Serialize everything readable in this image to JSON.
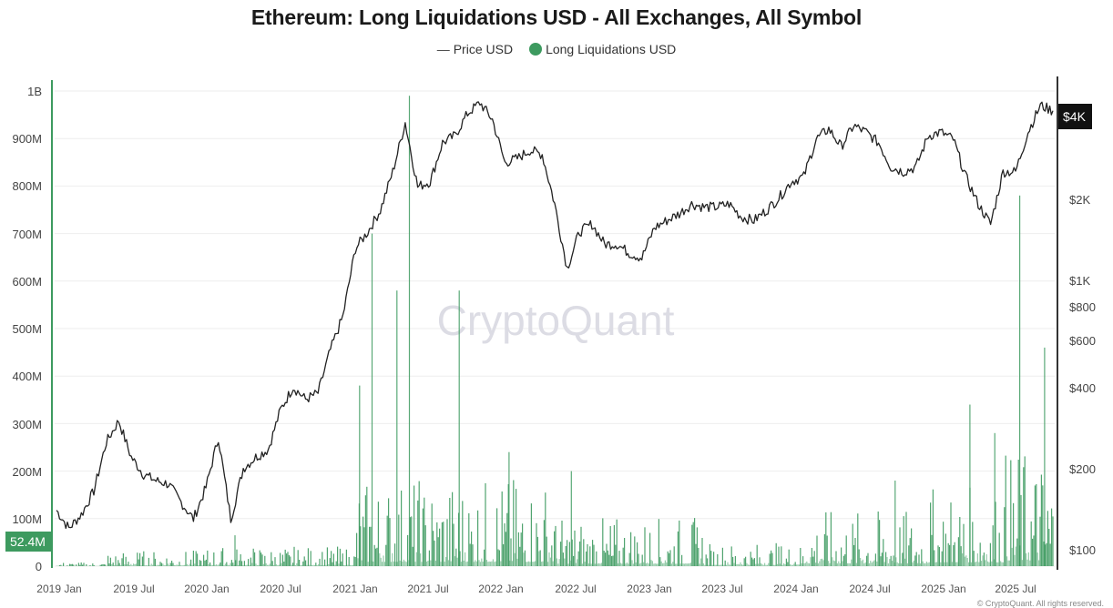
{
  "chart_data": {
    "type": "bar+line",
    "title": "Ethereum: Long Liquidations USD - All Exchanges, All Symbol",
    "legend": [
      {
        "name": "Price USD",
        "marker": "line",
        "color": "#222222"
      },
      {
        "name": "Long Liquidations USD",
        "marker": "dot",
        "color": "#3d9a5f"
      }
    ],
    "legend_position": "top-center",
    "grid": true,
    "left_axis": {
      "label": "Long Liquidations USD",
      "ticks": [
        "0",
        "100M",
        "200M",
        "300M",
        "400M",
        "500M",
        "600M",
        "700M",
        "800M",
        "900M",
        "1B"
      ],
      "range": [
        0,
        1000000000
      ],
      "current_value_badge": "52.4M"
    },
    "right_axis": {
      "label": "Price USD",
      "scale": "log",
      "ticks": [
        "$100",
        "$200",
        "$400",
        "$600",
        "$800",
        "$1K",
        "$2K",
        "$4K"
      ],
      "current_value_badge": "$4K"
    },
    "x_axis": {
      "ticks": [
        "2019 Jan",
        "2019 Jul",
        "2020 Jan",
        "2020 Jul",
        "2021 Jan",
        "2021 Jul",
        "2022 Jan",
        "2022 Jul",
        "2023 Jan",
        "2023 Jul",
        "2024 Jan",
        "2024 Jul",
        "2025 Jan",
        "2025 Jul"
      ]
    },
    "series": [
      {
        "name": "Price USD",
        "type": "line",
        "x": [
          "2019-01",
          "2019-02",
          "2019-03",
          "2019-04",
          "2019-05",
          "2019-06",
          "2019-07",
          "2019-08",
          "2019-09",
          "2019-10",
          "2019-11",
          "2019-12",
          "2020-01",
          "2020-02",
          "2020-03",
          "2020-04",
          "2020-05",
          "2020-06",
          "2020-07",
          "2020-08",
          "2020-09",
          "2020-10",
          "2020-11",
          "2020-12",
          "2021-01",
          "2021-02",
          "2021-03",
          "2021-04",
          "2021-05",
          "2021-06",
          "2021-07",
          "2021-08",
          "2021-09",
          "2021-10",
          "2021-11",
          "2021-12",
          "2022-01",
          "2022-02",
          "2022-03",
          "2022-04",
          "2022-05",
          "2022-06",
          "2022-07",
          "2022-08",
          "2022-09",
          "2022-10",
          "2022-11",
          "2022-12",
          "2023-01",
          "2023-02",
          "2023-03",
          "2023-04",
          "2023-05",
          "2023-06",
          "2023-07",
          "2023-08",
          "2023-09",
          "2023-10",
          "2023-11",
          "2023-12",
          "2024-01",
          "2024-02",
          "2024-03",
          "2024-04",
          "2024-05",
          "2024-06",
          "2024-07",
          "2024-08",
          "2024-09",
          "2024-10",
          "2024-11",
          "2024-12",
          "2025-01",
          "2025-02",
          "2025-03",
          "2025-04",
          "2025-05",
          "2025-06",
          "2025-07",
          "2025-08",
          "2025-09"
        ],
        "values": [
          140,
          120,
          135,
          165,
          250,
          300,
          220,
          190,
          180,
          175,
          150,
          130,
          170,
          260,
          130,
          200,
          220,
          235,
          330,
          400,
          360,
          380,
          550,
          730,
          1300,
          1500,
          1800,
          2500,
          3800,
          2200,
          2300,
          3200,
          3400,
          4100,
          4500,
          3900,
          2700,
          2800,
          3000,
          2900,
          1900,
          1100,
          1500,
          1600,
          1350,
          1350,
          1250,
          1200,
          1550,
          1650,
          1750,
          1900,
          1850,
          1850,
          1900,
          1700,
          1650,
          1800,
          2000,
          2300,
          2400,
          3300,
          3600,
          3100,
          3700,
          3500,
          3200,
          2600,
          2500,
          2600,
          3400,
          3500,
          3300,
          2400,
          1900,
          1600,
          2500,
          2500,
          3500,
          4400,
          4200
        ]
      },
      {
        "name": "Long Liquidations USD",
        "type": "bar",
        "notable_spikes": [
          {
            "date": "2020-03",
            "value": 65000000
          },
          {
            "date": "2021-01",
            "value": 380000000
          },
          {
            "date": "2021-02",
            "value": 700000000
          },
          {
            "date": "2021-04",
            "value": 580000000
          },
          {
            "date": "2021-05",
            "value": 990000000
          },
          {
            "date": "2021-09",
            "value": 580000000
          },
          {
            "date": "2022-01",
            "value": 240000000
          },
          {
            "date": "2022-06",
            "value": 200000000
          },
          {
            "date": "2024-08",
            "value": 180000000
          },
          {
            "date": "2025-02",
            "value": 340000000
          },
          {
            "date": "2025-04",
            "value": 280000000
          },
          {
            "date": "2025-06",
            "value": 780000000
          },
          {
            "date": "2025-08",
            "value": 460000000
          }
        ],
        "latest_value": "52.4M"
      }
    ]
  },
  "header": {
    "title": "Ethereum: Long Liquidations USD - All Exchanges, All Symbol",
    "legend_price": "Price USD",
    "legend_price_glyph": "—",
    "legend_liq": "Long Liquidations USD"
  },
  "axes": {
    "left_ticks": [
      "1B",
      "900M",
      "800M",
      "700M",
      "600M",
      "500M",
      "400M",
      "300M",
      "200M",
      "100M",
      "0"
    ],
    "right_ticks": [
      "$4K",
      "$2K",
      "$1K",
      "$800",
      "$600",
      "$400",
      "$200",
      "$100"
    ],
    "x_ticks": [
      "2019 Jan",
      "2019 Jul",
      "2020 Jan",
      "2020 Jul",
      "2021 Jan",
      "2021 Jul",
      "2022 Jan",
      "2022 Jul",
      "2023 Jan",
      "2023 Jul",
      "2024 Jan",
      "2024 Jul",
      "2025 Jan",
      "2025 Jul"
    ]
  },
  "badges": {
    "left": "52.4M",
    "right": "$4K"
  },
  "watermark": "CryptoQuant",
  "copyright": "© CryptoQuant. All rights reserved.",
  "colors": {
    "bar": "#3d9a5f",
    "bar_light": "#8cc7a2",
    "price_line": "#222222",
    "left_axis": "#3d9a5f",
    "right_axis": "#333333",
    "grid": "#eeeeee"
  }
}
